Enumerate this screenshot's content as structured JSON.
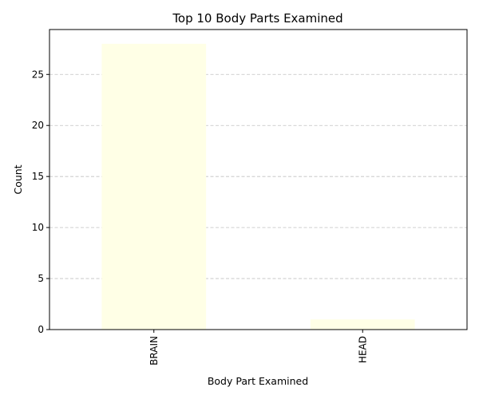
{
  "chart_data": {
    "type": "bar",
    "title": "Top 10 Body Parts Examined",
    "xlabel": "Body Part Examined",
    "ylabel": "Count",
    "categories": [
      "BRAIN",
      "HEAD"
    ],
    "values": [
      28,
      1
    ],
    "ylim": [
      0,
      29.4
    ],
    "yticks": [
      0,
      5,
      10,
      15,
      20,
      25
    ],
    "grid": "y-dashed",
    "bar_color": "#ffffe6",
    "grid_color": "#c0c0c0",
    "tick_label_rotation": "vertical",
    "legend": "none"
  }
}
